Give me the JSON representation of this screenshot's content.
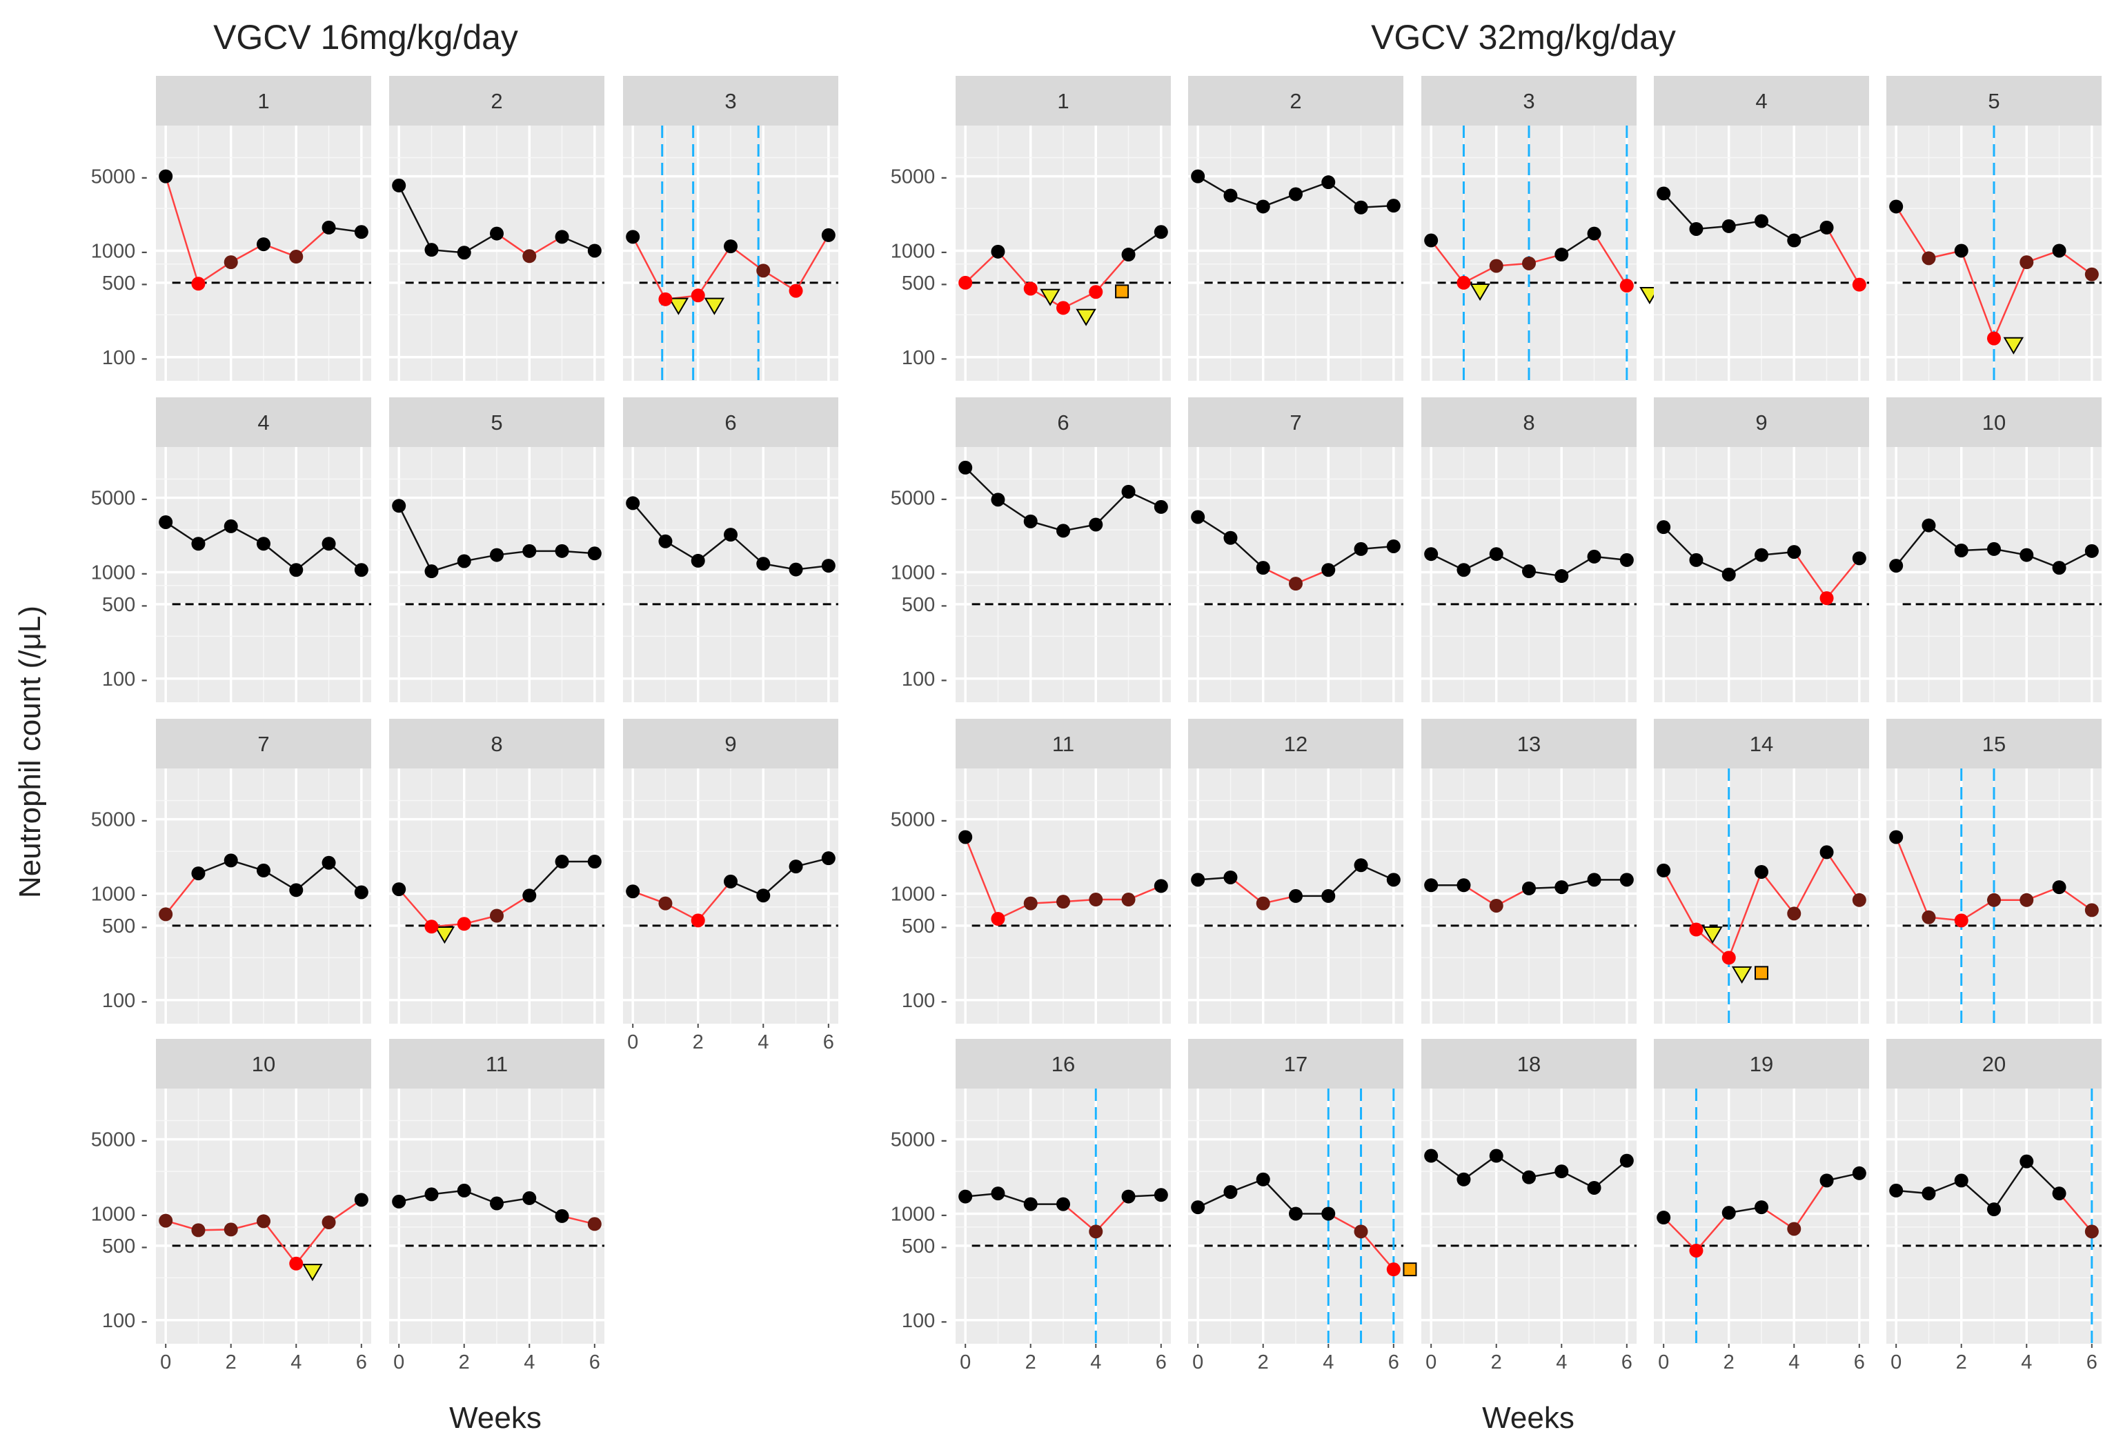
{
  "chart_data": {
    "type": "line",
    "ylabel": "Neutrophil  count  (/μL)",
    "xlabel": "Weeks",
    "y_scale": "log",
    "ylim": [
      60,
      15000
    ],
    "xlim": [
      -0.3,
      6.3
    ],
    "yticks": [
      100,
      500,
      1000,
      5000
    ],
    "xticks": [
      0,
      2,
      4,
      6
    ],
    "threshold": 500,
    "grid": true,
    "colors": {
      "normal": "#000000",
      "low": "#ff0000",
      "mid": "#6b1a10",
      "mixed_line": "#ff4040",
      "vline": "#1ab2ff",
      "triangle": "#f0f020",
      "square": "#ffa500",
      "panel_bg": "#ebebeb",
      "strip_bg": "#d9d9d9"
    },
    "groups": [
      {
        "title": "VGCV 16mg/kg/day",
        "panels": [
          {
            "label": "1",
            "weeks": [
              0,
              1,
              2,
              3,
              4,
              5,
              6
            ],
            "values": [
              5000,
              490,
              780,
              1150,
              880,
              1650,
              1500
            ],
            "vlines": [],
            "triangles": [],
            "squares": []
          },
          {
            "label": "2",
            "weeks": [
              0,
              1,
              2,
              3,
              4,
              5,
              6
            ],
            "values": [
              4100,
              1020,
              960,
              1450,
              890,
              1350,
              1000
            ],
            "vlines": [],
            "triangles": [],
            "squares": []
          },
          {
            "label": "3",
            "weeks": [
              0,
              1,
              2,
              3,
              4,
              5,
              6
            ],
            "values": [
              1350,
              350,
              380,
              1100,
              650,
              420,
              1400
            ],
            "vlines": [
              0.9,
              1.85,
              3.85
            ],
            "triangles": [
              {
                "x": 1.4,
                "y": 305
              },
              {
                "x": 2.5,
                "y": 305
              }
            ],
            "squares": []
          },
          {
            "label": "4",
            "weeks": [
              0,
              1,
              2,
              3,
              4,
              5,
              6
            ],
            "values": [
              2950,
              1850,
              2700,
              1850,
              1050,
              1850,
              1050
            ],
            "vlines": [],
            "triangles": [],
            "squares": []
          },
          {
            "label": "5",
            "weeks": [
              0,
              1,
              2,
              3,
              4,
              5,
              6
            ],
            "values": [
              4200,
              1020,
              1270,
              1450,
              1580,
              1580,
              1500
            ],
            "vlines": [],
            "triangles": [],
            "squares": []
          },
          {
            "label": "6",
            "weeks": [
              0,
              1,
              2,
              3,
              4,
              5,
              6
            ],
            "values": [
              4450,
              1950,
              1280,
              2250,
              1200,
              1060,
              1150
            ],
            "vlines": [],
            "triangles": [],
            "squares": []
          },
          {
            "label": "7",
            "weeks": [
              0,
              1,
              2,
              3,
              4,
              5,
              6
            ],
            "values": [
              640,
              1550,
              2050,
              1650,
              1080,
              1950,
              1030
            ],
            "vlines": [],
            "triangles": [],
            "squares": []
          },
          {
            "label": "8",
            "weeks": [
              0,
              1,
              2,
              3,
              4,
              5,
              6
            ],
            "values": [
              1100,
              490,
              520,
              620,
              960,
              2000,
              2000
            ],
            "vlines": [],
            "triangles": [
              {
                "x": 1.4,
                "y": 415
              }
            ],
            "squares": []
          },
          {
            "label": "9",
            "weeks": [
              0,
              1,
              2,
              3,
              4,
              5,
              6
            ],
            "values": [
              1050,
              810,
              560,
              1300,
              960,
              1800,
              2150
            ],
            "vlines": [],
            "triangles": [],
            "squares": []
          },
          {
            "label": "10",
            "weeks": [
              0,
              1,
              2,
              3,
              4,
              5,
              6
            ],
            "values": [
              860,
              700,
              710,
              850,
              340,
              830,
              1350
            ],
            "vlines": [],
            "triangles": [
              {
                "x": 4.5,
                "y": 285
              }
            ],
            "squares": []
          },
          {
            "label": "11",
            "weeks": [
              0,
              1,
              2,
              3,
              4,
              5,
              6
            ],
            "values": [
              1300,
              1520,
              1650,
              1250,
              1400,
              950,
              800
            ],
            "vlines": [],
            "triangles": [],
            "squares": []
          }
        ]
      },
      {
        "title": "VGCV 32mg/kg/day",
        "panels": [
          {
            "label": "1",
            "weeks": [
              0,
              1,
              2,
              3,
              4,
              5,
              6
            ],
            "values": [
              500,
              980,
              440,
              290,
              410,
              920,
              1500
            ],
            "vlines": [],
            "triangles": [
              {
                "x": 2.6,
                "y": 370
              },
              {
                "x": 3.7,
                "y": 240
              }
            ],
            "squares": [
              {
                "x": 4.8,
                "y": 415
              }
            ]
          },
          {
            "label": "2",
            "weeks": [
              0,
              1,
              2,
              3,
              4,
              5,
              6
            ],
            "values": [
              5000,
              3300,
              2600,
              3400,
              4400,
              2550,
              2650
            ],
            "vlines": [],
            "triangles": [],
            "squares": []
          },
          {
            "label": "3",
            "weeks": [
              0,
              1,
              2,
              3,
              4,
              5,
              6
            ],
            "values": [
              1250,
              500,
              720,
              760,
              920,
              1450,
              470
            ],
            "vlines": [
              1,
              3,
              6
            ],
            "triangles": [
              {
                "x": 1.5,
                "y": 415
              },
              {
                "x": 6.7,
                "y": 385
              }
            ],
            "squares": []
          },
          {
            "label": "4",
            "weeks": [
              0,
              1,
              2,
              3,
              4,
              5,
              6
            ],
            "values": [
              3450,
              1600,
              1700,
              1900,
              1250,
              1650,
              480
            ],
            "vlines": [],
            "triangles": [],
            "squares": []
          },
          {
            "label": "5",
            "weeks": [
              0,
              1,
              2,
              3,
              4,
              5,
              6
            ],
            "values": [
              2600,
              850,
              1000,
              150,
              780,
              1000,
              600
            ],
            "vlines": [
              3
            ],
            "triangles": [
              {
                "x": 3.6,
                "y": 130
              }
            ],
            "squares": []
          },
          {
            "label": "6",
            "weeks": [
              0,
              1,
              2,
              3,
              4,
              5,
              6
            ],
            "values": [
              9600,
              4800,
              3000,
              2450,
              2800,
              5700,
              4100
            ],
            "vlines": [],
            "triangles": [],
            "squares": []
          },
          {
            "label": "7",
            "weeks": [
              0,
              1,
              2,
              3,
              4,
              5,
              6
            ],
            "values": [
              3300,
              2100,
              1100,
              780,
              1050,
              1650,
              1750
            ],
            "vlines": [],
            "triangles": [],
            "squares": []
          },
          {
            "label": "8",
            "weeks": [
              0,
              1,
              2,
              3,
              4,
              5,
              6
            ],
            "values": [
              1480,
              1050,
              1480,
              1020,
              920,
              1400,
              1300
            ],
            "vlines": [],
            "triangles": [],
            "squares": []
          },
          {
            "label": "9",
            "weeks": [
              0,
              1,
              2,
              3,
              4,
              5,
              6
            ],
            "values": [
              2650,
              1300,
              950,
              1450,
              1550,
              570,
              1350
            ],
            "vlines": [],
            "triangles": [],
            "squares": []
          },
          {
            "label": "10",
            "weeks": [
              0,
              1,
              2,
              3,
              4,
              5,
              6
            ],
            "values": [
              1150,
              2750,
              1600,
              1650,
              1450,
              1100,
              1580
            ],
            "vlines": [],
            "triangles": [],
            "squares": []
          },
          {
            "label": "11",
            "weeks": [
              0,
              1,
              2,
              3,
              4,
              5,
              6
            ],
            "values": [
              3400,
              580,
              810,
              840,
              880,
              880,
              1180
            ],
            "vlines": [],
            "triangles": [],
            "squares": []
          },
          {
            "label": "12",
            "weeks": [
              0,
              1,
              2,
              3,
              4,
              5,
              6
            ],
            "values": [
              1350,
              1420,
              810,
              950,
              950,
              1850,
              1350
            ],
            "vlines": [],
            "triangles": [],
            "squares": []
          },
          {
            "label": "13",
            "weeks": [
              0,
              1,
              2,
              3,
              4,
              5,
              6
            ],
            "values": [
              1200,
              1200,
              770,
              1120,
              1150,
              1350,
              1350
            ],
            "vlines": [],
            "triangles": [],
            "squares": []
          },
          {
            "label": "14",
            "weeks": [
              0,
              1,
              2,
              3,
              4,
              5,
              6
            ],
            "values": [
              1650,
              460,
              250,
              1600,
              650,
              2450,
              870
            ],
            "vlines": [
              2
            ],
            "triangles": [
              {
                "x": 1.5,
                "y": 415
              },
              {
                "x": 2.4,
                "y": 175
              }
            ],
            "squares": [
              {
                "x": 3,
                "y": 180
              }
            ]
          },
          {
            "label": "15",
            "weeks": [
              0,
              1,
              2,
              3,
              4,
              5,
              6
            ],
            "values": [
              3400,
              600,
              560,
              870,
              870,
              1150,
              700
            ],
            "vlines": [
              2,
              3
            ],
            "triangles": [],
            "squares": []
          },
          {
            "label": "16",
            "weeks": [
              0,
              1,
              2,
              3,
              4,
              5,
              6
            ],
            "values": [
              1450,
              1550,
              1230,
              1230,
              680,
              1450,
              1500
            ],
            "vlines": [
              4
            ],
            "triangles": [],
            "squares": []
          },
          {
            "label": "17",
            "weeks": [
              0,
              1,
              2,
              3,
              4,
              5,
              6
            ],
            "values": [
              1150,
              1600,
              2100,
              1000,
              1000,
              680,
              300
            ],
            "vlines": [
              4,
              5,
              6
            ],
            "triangles": [],
            "squares": [
              {
                "x": 6.5,
                "y": 300
              }
            ]
          },
          {
            "label": "18",
            "weeks": [
              0,
              1,
              2,
              3,
              4,
              5,
              6
            ],
            "values": [
              3500,
              2100,
              3500,
              2200,
              2500,
              1750,
              3150
            ],
            "vlines": [],
            "triangles": [],
            "squares": []
          },
          {
            "label": "19",
            "weeks": [
              0,
              1,
              2,
              3,
              4,
              5,
              6
            ],
            "values": [
              920,
              450,
              1020,
              1150,
              720,
              2050,
              2400
            ],
            "vlines": [
              1
            ],
            "triangles": [],
            "squares": []
          },
          {
            "label": "20",
            "weeks": [
              0,
              1,
              2,
              3,
              4,
              5,
              6
            ],
            "values": [
              1650,
              1550,
              2050,
              1100,
              3100,
              1550,
              680
            ],
            "vlines": [
              6
            ],
            "triangles": [],
            "squares": []
          }
        ]
      }
    ]
  }
}
